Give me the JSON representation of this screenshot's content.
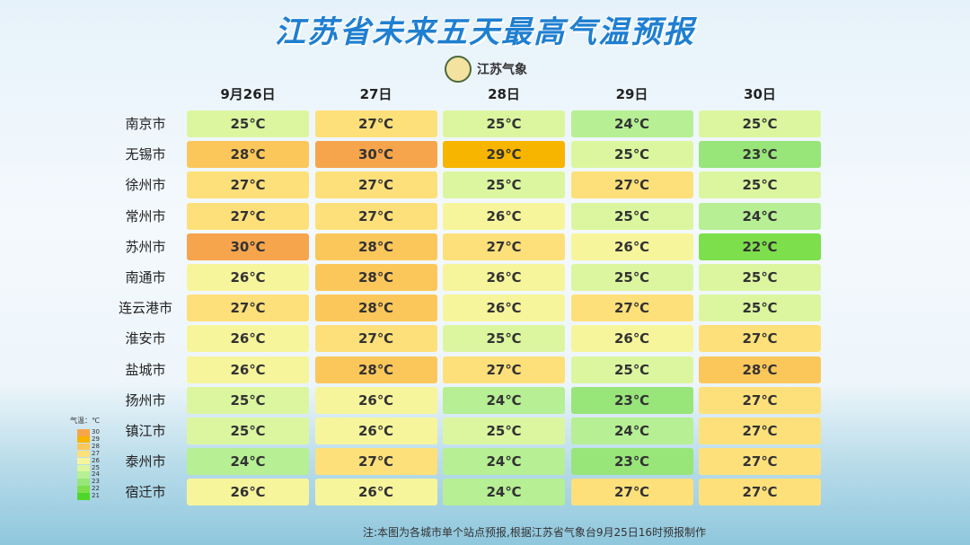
{
  "header": {
    "title": "江苏省未来五天最高气温预报",
    "logo": "江苏气象"
  },
  "table": {
    "columns": [
      "9月26日",
      "27日",
      "28日",
      "29日",
      "30日"
    ],
    "rows": [
      {
        "city": "南京市",
        "cells": [
          "25℃",
          "27℃",
          "25℃",
          "24℃",
          "25℃"
        ]
      },
      {
        "city": "无锡市",
        "cells": [
          "28℃",
          "30℃",
          "29℃",
          "25℃",
          "23℃"
        ]
      },
      {
        "city": "徐州市",
        "cells": [
          "27℃",
          "27℃",
          "25℃",
          "27℃",
          "25℃"
        ]
      },
      {
        "city": "常州市",
        "cells": [
          "27℃",
          "27℃",
          "26℃",
          "25℃",
          "24℃"
        ]
      },
      {
        "city": "苏州市",
        "cells": [
          "30℃",
          "28℃",
          "27℃",
          "26℃",
          "22℃"
        ]
      },
      {
        "city": "南通市",
        "cells": [
          "26℃",
          "28℃",
          "26℃",
          "25℃",
          "25℃"
        ]
      },
      {
        "city": "连云港市",
        "cells": [
          "27℃",
          "28℃",
          "26℃",
          "27℃",
          "25℃"
        ]
      },
      {
        "city": "淮安市",
        "cells": [
          "26℃",
          "27℃",
          "25℃",
          "26℃",
          "27℃"
        ]
      },
      {
        "city": "盐城市",
        "cells": [
          "26℃",
          "28℃",
          "27℃",
          "25℃",
          "28℃"
        ]
      },
      {
        "city": "扬州市",
        "cells": [
          "25℃",
          "26℃",
          "24℃",
          "23℃",
          "27℃"
        ]
      },
      {
        "city": "镇江市",
        "cells": [
          "25℃",
          "26℃",
          "25℃",
          "24℃",
          "27℃"
        ]
      },
      {
        "city": "泰州市",
        "cells": [
          "24℃",
          "27℃",
          "24℃",
          "23℃",
          "27℃"
        ]
      },
      {
        "city": "宿迁市",
        "cells": [
          "26℃",
          "26℃",
          "24℃",
          "27℃",
          "27℃"
        ]
      }
    ]
  },
  "legend": {
    "title": "气温：℃",
    "items": [
      {
        "label": "30",
        "color": "#f7a54d"
      },
      {
        "label": "29",
        "color": "#f7b500"
      },
      {
        "label": "28",
        "color": "#fcc75a"
      },
      {
        "label": "27",
        "color": "#fee07a"
      },
      {
        "label": "26",
        "color": "#f7f59c"
      },
      {
        "label": "25",
        "color": "#dcf6a0"
      },
      {
        "label": "24",
        "color": "#b6ef94"
      },
      {
        "label": "23",
        "color": "#98e57a"
      },
      {
        "label": "22",
        "color": "#7ddf4b"
      },
      {
        "label": "21",
        "color": "#4fd62a"
      }
    ]
  },
  "footer": {
    "note": "注:本图为各城市单个站点预报,根据江苏省气象台9月25日16时预报制作"
  }
}
